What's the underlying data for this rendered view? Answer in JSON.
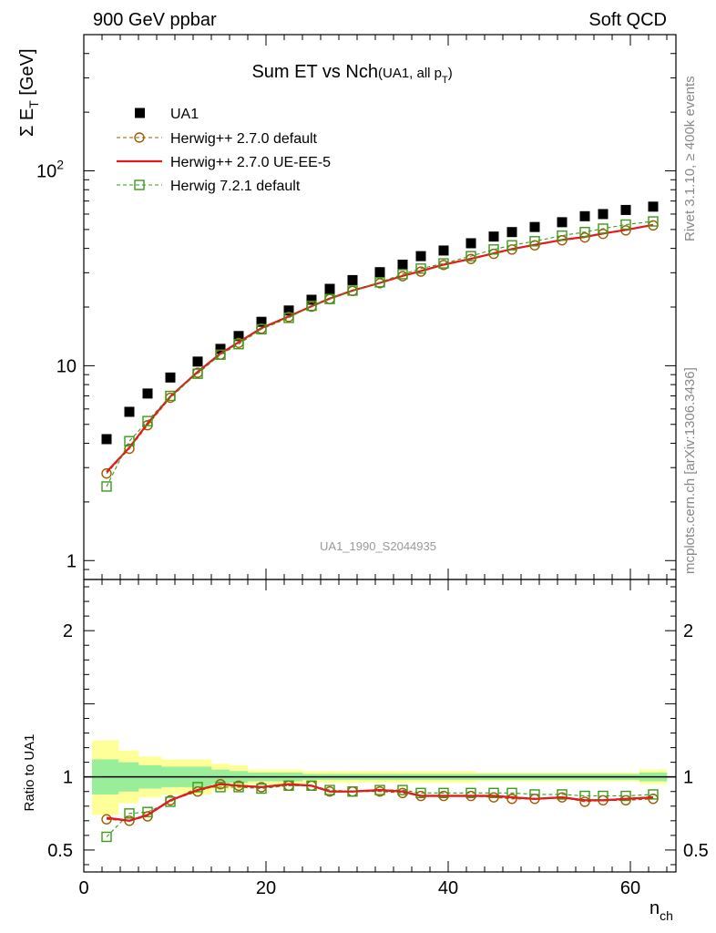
{
  "header": {
    "left": "900 GeV ppbar",
    "right": "Soft QCD"
  },
  "side_text": {
    "top": "Rivet 3.1.10, ≥ 400k events",
    "bottom": "mcplots.cern.ch [arXiv:1306.3436]"
  },
  "watermark": "UA1_1990_S2044935",
  "chart_data": [
    {
      "type": "line",
      "panel": "main",
      "title": "Sum ET vs Nch",
      "title_note": "(UA1, all p",
      "title_note_sub": "T",
      "title_note_end": ")",
      "ylabel": "Σ E",
      "ylabel_sub": "T",
      "ylabel_unit": " [GeV]",
      "yscale": "log",
      "ylim": [
        0.8,
        500
      ],
      "xlim": [
        0,
        65
      ],
      "yticks": [
        {
          "v": 1,
          "label": "1"
        },
        {
          "v": 10,
          "label": "10"
        },
        {
          "v": 100,
          "label": "10",
          "sup": "2"
        }
      ],
      "x": [
        2.5,
        5,
        7,
        9.5,
        12.5,
        15,
        17,
        19.5,
        22.5,
        25,
        27,
        29.5,
        32.5,
        35,
        37,
        39.5,
        42.5,
        45,
        47,
        49.5,
        52.5,
        55,
        57,
        59.5,
        62.5
      ],
      "series": [
        {
          "name": "UA1",
          "style": "square-filled",
          "color": "#000000",
          "values": [
            4.2,
            5.8,
            7.2,
            8.7,
            10.5,
            12.2,
            14.2,
            16.8,
            19.2,
            21.8,
            24.8,
            27.5,
            30.2,
            33,
            36.5,
            39,
            42.5,
            46,
            48.5,
            51.5,
            54.5,
            58.5,
            60,
            63,
            65.5
          ]
        },
        {
          "name": "Herwig++ 2.7.0 default",
          "style": "circle-dashed",
          "color": "#a05a00",
          "values": [
            2.8,
            3.75,
            4.95,
            6.85,
            9.2,
            11.4,
            13.1,
            15.5,
            17.8,
            20.1,
            22,
            24.2,
            26.5,
            28.8,
            30.4,
            32.9,
            35.3,
            37.5,
            39.5,
            41.5,
            44,
            45.5,
            47.5,
            49.5,
            52.5
          ]
        },
        {
          "name": "Herwig++ 2.7.0 UE-EE-5",
          "style": "solid-line",
          "color": "#e41a1c",
          "values": [
            2.85,
            3.8,
            5.05,
            6.95,
            9.3,
            11.55,
            13.2,
            15.6,
            17.9,
            20.2,
            22.1,
            24.3,
            26.6,
            28.9,
            30.6,
            33,
            35.4,
            37.7,
            39.7,
            41.7,
            44.2,
            45.8,
            47.7,
            49.8,
            52.8
          ]
        },
        {
          "name": "Herwig 7.2.1 default",
          "style": "square-open-dashed",
          "color": "#3a9a1a",
          "values": [
            2.4,
            4.1,
            5.2,
            7,
            9.1,
            11.4,
            12.9,
            15.4,
            17.6,
            20.3,
            22,
            24.3,
            26.8,
            29.5,
            31.5,
            33.5,
            36.5,
            39.5,
            41.5,
            43.5,
            46.5,
            48.5,
            50.5,
            53,
            55
          ]
        }
      ]
    },
    {
      "type": "line",
      "panel": "ratio",
      "ylabel": "Ratio to UA1",
      "ylim": [
        0.35,
        2.35
      ],
      "xlim": [
        0,
        65
      ],
      "xlabel": "n",
      "xlabel_sub": "ch",
      "xticks": [
        {
          "v": 0,
          "label": "0"
        },
        {
          "v": 20,
          "label": "20"
        },
        {
          "v": 40,
          "label": "40"
        },
        {
          "v": 60,
          "label": "60"
        }
      ],
      "yticks": [
        {
          "v": 0.5,
          "label": "0.5"
        },
        {
          "v": 1,
          "label": "1"
        },
        {
          "v": 2,
          "label": "2"
        }
      ],
      "band_edges": [
        0.9,
        3.8,
        6,
        8.5,
        11,
        14,
        16,
        18,
        21,
        24,
        26,
        28,
        31,
        33,
        36,
        38,
        41,
        43,
        46,
        48,
        51,
        53,
        56,
        58,
        61,
        64
      ],
      "band_yellow": [
        [
          0.74,
          1.25
        ],
        [
          0.82,
          1.18
        ],
        [
          0.86,
          1.14
        ],
        [
          0.88,
          1.12
        ],
        [
          0.88,
          1.12
        ],
        [
          0.91,
          1.09
        ],
        [
          0.92,
          1.08
        ],
        [
          0.95,
          1.05
        ],
        [
          0.95,
          1.05
        ],
        [
          0.96,
          1.04
        ],
        [
          0.96,
          1.04
        ],
        [
          0.96,
          1.04
        ],
        [
          0.96,
          1.04
        ],
        [
          0.96,
          1.04
        ],
        [
          0.96,
          1.04
        ],
        [
          0.96,
          1.04
        ],
        [
          0.96,
          1.04
        ],
        [
          0.97,
          1.03
        ],
        [
          0.97,
          1.03
        ],
        [
          0.97,
          1.03
        ],
        [
          0.97,
          1.03
        ],
        [
          0.97,
          1.03
        ],
        [
          0.97,
          1.03
        ],
        [
          0.97,
          1.03
        ],
        [
          0.95,
          1.05
        ]
      ],
      "band_green": [
        [
          0.88,
          1.12
        ],
        [
          0.9,
          1.1
        ],
        [
          0.92,
          1.08
        ],
        [
          0.93,
          1.07
        ],
        [
          0.93,
          1.07
        ],
        [
          0.95,
          1.05
        ],
        [
          0.96,
          1.04
        ],
        [
          0.97,
          1.03
        ],
        [
          0.97,
          1.03
        ],
        [
          0.98,
          1.02
        ],
        [
          0.98,
          1.02
        ],
        [
          0.98,
          1.02
        ],
        [
          0.98,
          1.02
        ],
        [
          0.98,
          1.02
        ],
        [
          0.98,
          1.02
        ],
        [
          0.98,
          1.02
        ],
        [
          0.98,
          1.02
        ],
        [
          0.98,
          1.02
        ],
        [
          0.98,
          1.02
        ],
        [
          0.98,
          1.02
        ],
        [
          0.98,
          1.02
        ],
        [
          0.98,
          1.02
        ],
        [
          0.98,
          1.02
        ],
        [
          0.98,
          1.02
        ],
        [
          0.97,
          1.03
        ]
      ],
      "x": [
        2.5,
        5,
        7,
        9.5,
        12.5,
        15,
        17,
        19.5,
        22.5,
        25,
        27,
        29.5,
        32.5,
        35,
        37,
        39.5,
        42.5,
        45,
        47,
        49.5,
        52.5,
        55,
        57,
        59.5,
        62.5
      ],
      "series": [
        {
          "name": "Herwig++ 2.7.0 default",
          "style": "circle-dashed",
          "color": "#a05a00",
          "values": [
            0.71,
            0.7,
            0.73,
            0.84,
            0.9,
            0.95,
            0.94,
            0.93,
            0.94,
            0.94,
            0.9,
            0.9,
            0.9,
            0.89,
            0.87,
            0.87,
            0.87,
            0.86,
            0.85,
            0.85,
            0.86,
            0.83,
            0.84,
            0.84,
            0.85
          ]
        },
        {
          "name": "Herwig++ 2.7.0 UE-EE-5",
          "style": "solid-line",
          "color": "#e41a1c",
          "values": [
            0.72,
            0.7,
            0.74,
            0.84,
            0.91,
            0.95,
            0.94,
            0.93,
            0.95,
            0.94,
            0.9,
            0.9,
            0.91,
            0.9,
            0.87,
            0.87,
            0.87,
            0.87,
            0.86,
            0.85,
            0.86,
            0.84,
            0.84,
            0.85,
            0.86
          ]
        },
        {
          "name": "Herwig 7.2.1 default",
          "style": "square-open-dashed",
          "color": "#3a9a1a",
          "values": [
            0.59,
            0.75,
            0.76,
            0.83,
            0.93,
            0.93,
            0.93,
            0.92,
            0.94,
            0.94,
            0.91,
            0.9,
            0.91,
            0.91,
            0.89,
            0.89,
            0.89,
            0.89,
            0.89,
            0.88,
            0.88,
            0.87,
            0.87,
            0.87,
            0.88
          ]
        }
      ]
    }
  ]
}
